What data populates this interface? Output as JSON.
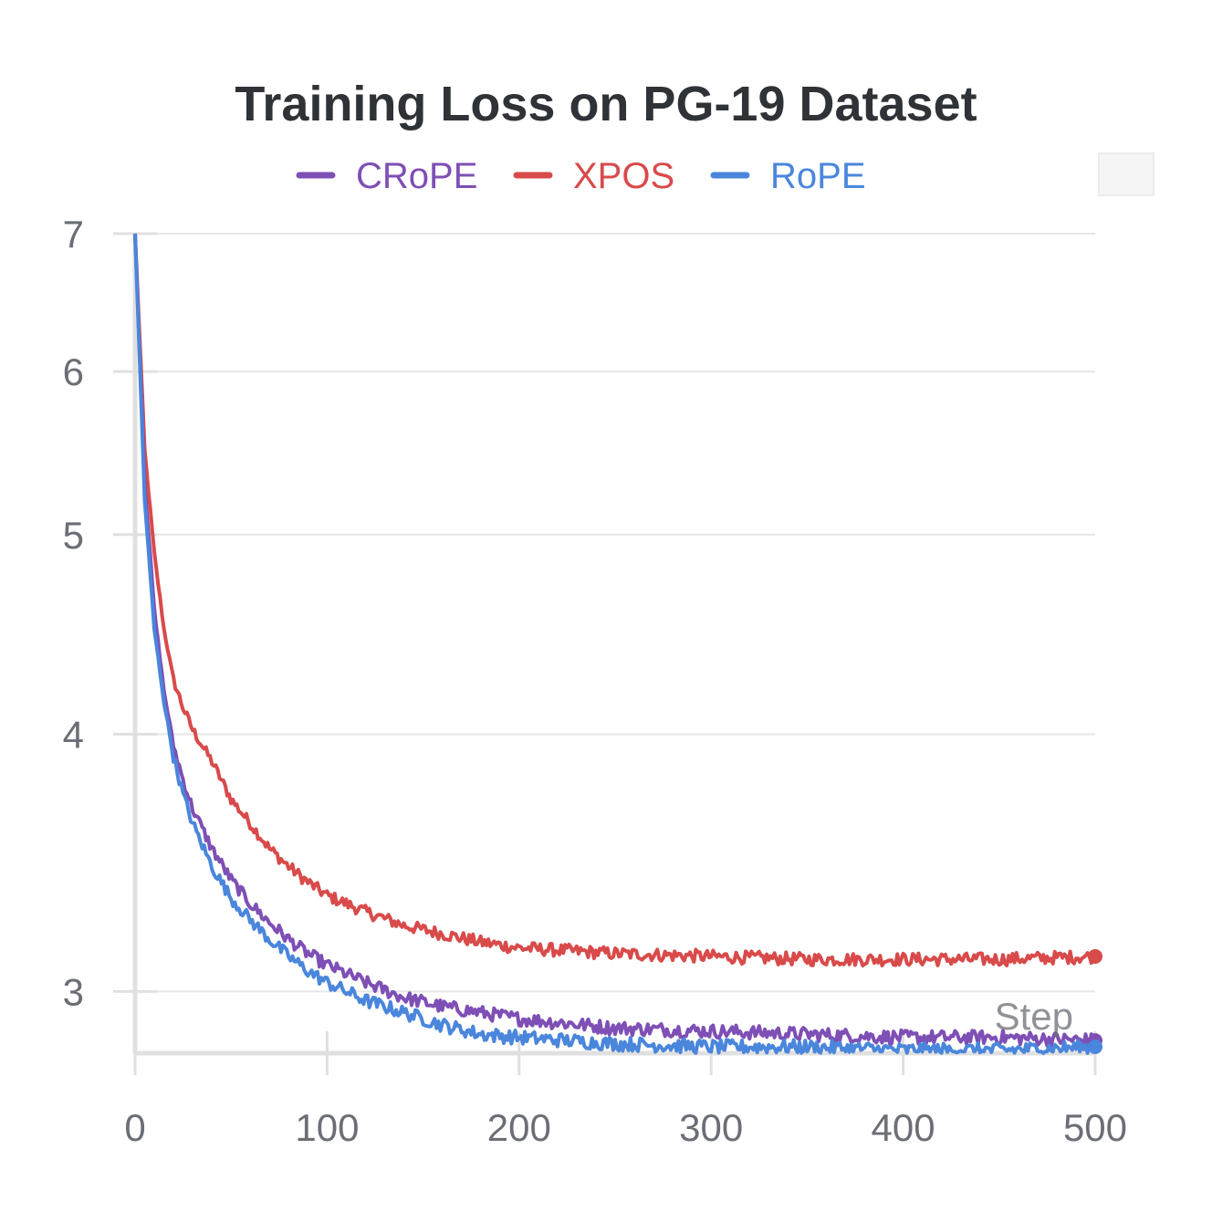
{
  "colors": {
    "crope": "#7e4fb5",
    "xpos": "#d94a4a",
    "rope": "#4a86dc"
  },
  "chart_data": {
    "type": "line",
    "title": "Training Loss on PG-19 Dataset",
    "xlabel": "Step",
    "ylabel": "",
    "xlim": [
      0,
      500
    ],
    "ylim": [
      2.8,
      7
    ],
    "y_scale": "log",
    "grid": true,
    "legend_position": "top",
    "x_ticks": [
      "0",
      "100",
      "200",
      "300",
      "400",
      "500"
    ],
    "y_ticks": [
      "3",
      "4",
      "5",
      "6",
      "7"
    ],
    "series": [
      {
        "name": "CRoPE",
        "color": "#7e4fb5",
        "x": [
          0,
          5,
          10,
          15,
          20,
          25,
          30,
          40,
          50,
          60,
          70,
          80,
          90,
          100,
          120,
          140,
          160,
          180,
          200,
          250,
          300,
          350,
          400,
          450,
          500
        ],
        "values": [
          7.0,
          5.3,
          4.6,
          4.2,
          3.95,
          3.8,
          3.68,
          3.52,
          3.4,
          3.31,
          3.24,
          3.18,
          3.13,
          3.09,
          3.03,
          2.98,
          2.95,
          2.93,
          2.91,
          2.88,
          2.87,
          2.86,
          2.85,
          2.85,
          2.84
        ]
      },
      {
        "name": "XPOS",
        "color": "#d94a4a",
        "x": [
          0,
          5,
          10,
          15,
          20,
          25,
          30,
          40,
          50,
          60,
          70,
          80,
          90,
          100,
          120,
          140,
          160,
          180,
          200,
          250,
          300,
          350,
          400,
          450,
          500
        ],
        "values": [
          7.0,
          5.5,
          4.9,
          4.5,
          4.25,
          4.12,
          4.02,
          3.88,
          3.72,
          3.62,
          3.52,
          3.45,
          3.39,
          3.34,
          3.28,
          3.23,
          3.2,
          3.17,
          3.15,
          3.13,
          3.12,
          3.11,
          3.11,
          3.11,
          3.12
        ]
      },
      {
        "name": "RoPE",
        "color": "#4a86dc",
        "x": [
          0,
          5,
          10,
          15,
          20,
          25,
          30,
          40,
          50,
          60,
          70,
          80,
          90,
          100,
          120,
          140,
          160,
          180,
          200,
          250,
          300,
          350,
          400,
          450,
          500
        ],
        "values": [
          7.0,
          5.2,
          4.5,
          4.15,
          3.9,
          3.74,
          3.62,
          3.45,
          3.33,
          3.25,
          3.18,
          3.12,
          3.07,
          3.03,
          2.97,
          2.93,
          2.89,
          2.86,
          2.85,
          2.83,
          2.82,
          2.82,
          2.81,
          2.81,
          2.82
        ]
      }
    ]
  }
}
